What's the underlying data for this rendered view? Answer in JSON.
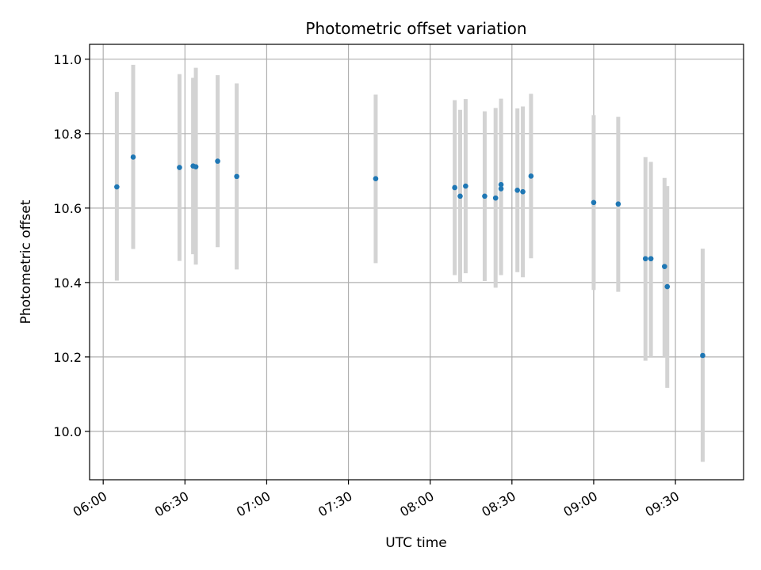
{
  "chart_data": {
    "type": "scatter",
    "title": "Photometric offset variation",
    "xlabel": "UTC time",
    "ylabel": "Photometric offset",
    "xlim": [
      "05:55",
      "09:55"
    ],
    "ylim": [
      9.87,
      11.04
    ],
    "x_ticks": [
      "06:00",
      "06:30",
      "07:00",
      "07:30",
      "08:00",
      "08:30",
      "09:00",
      "09:30"
    ],
    "y_ticks": [
      "10.0",
      "10.2",
      "10.4",
      "10.6",
      "10.8",
      "11.0"
    ],
    "grid": true,
    "legend": "none",
    "colors": {
      "points": "#1f77b4",
      "error_bars": "#d3d3d3"
    },
    "series": [
      {
        "points": [
          {
            "x": "06:05",
            "y": 10.657,
            "low": 10.405,
            "high": 10.912
          },
          {
            "x": "06:11",
            "y": 10.737,
            "low": 10.49,
            "high": 10.985
          },
          {
            "x": "06:28",
            "y": 10.709,
            "low": 10.458,
            "high": 10.96
          },
          {
            "x": "06:33",
            "y": 10.713,
            "low": 10.476,
            "high": 10.95
          },
          {
            "x": "06:34",
            "y": 10.711,
            "low": 10.448,
            "high": 10.977
          },
          {
            "x": "06:42",
            "y": 10.726,
            "low": 10.495,
            "high": 10.957
          },
          {
            "x": "06:49",
            "y": 10.685,
            "low": 10.435,
            "high": 10.935
          },
          {
            "x": "07:40",
            "y": 10.679,
            "low": 10.452,
            "high": 10.905
          },
          {
            "x": "08:09",
            "y": 10.655,
            "low": 10.42,
            "high": 10.89
          },
          {
            "x": "08:11",
            "y": 10.632,
            "low": 10.4,
            "high": 10.864
          },
          {
            "x": "08:13",
            "y": 10.659,
            "low": 10.425,
            "high": 10.893
          },
          {
            "x": "08:20",
            "y": 10.632,
            "low": 10.404,
            "high": 10.86
          },
          {
            "x": "08:24",
            "y": 10.627,
            "low": 10.386,
            "high": 10.869
          },
          {
            "x": "08:26",
            "y": 10.652,
            "low": 10.42,
            "high": 10.885
          },
          {
            "x": "08:26",
            "y": 10.663,
            "low": 10.43,
            "high": 10.894
          },
          {
            "x": "08:32",
            "y": 10.648,
            "low": 10.428,
            "high": 10.868
          },
          {
            "x": "08:34",
            "y": 10.644,
            "low": 10.414,
            "high": 10.873
          },
          {
            "x": "08:37",
            "y": 10.686,
            "low": 10.465,
            "high": 10.907
          },
          {
            "x": "09:00",
            "y": 10.615,
            "low": 10.38,
            "high": 10.85
          },
          {
            "x": "09:09",
            "y": 10.611,
            "low": 10.375,
            "high": 10.845
          },
          {
            "x": "09:19",
            "y": 10.464,
            "low": 10.19,
            "high": 10.737
          },
          {
            "x": "09:21",
            "y": 10.464,
            "low": 10.2,
            "high": 10.724
          },
          {
            "x": "09:26",
            "y": 10.443,
            "low": 10.2,
            "high": 10.681
          },
          {
            "x": "09:27",
            "y": 10.389,
            "low": 10.117,
            "high": 10.659
          },
          {
            "x": "09:40",
            "y": 10.204,
            "low": 9.918,
            "high": 10.491
          }
        ]
      }
    ]
  }
}
